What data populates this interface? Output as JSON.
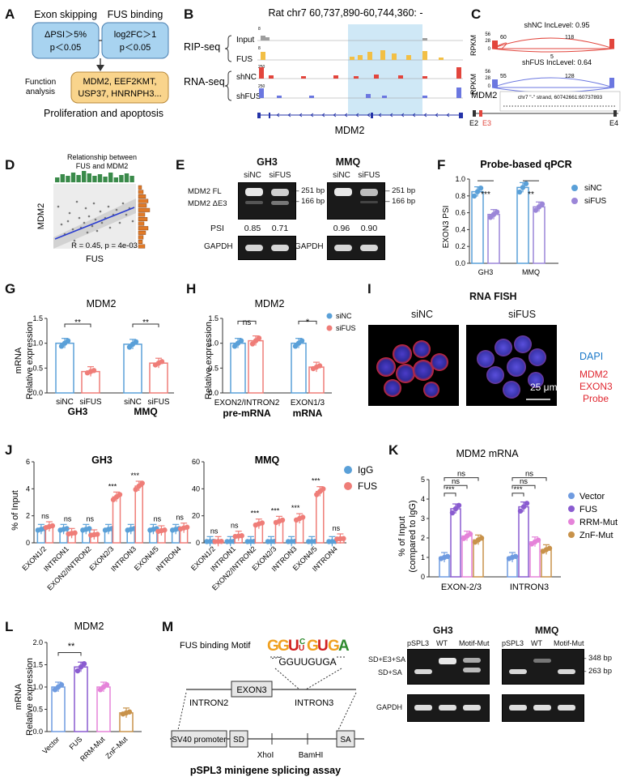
{
  "panel_letters": [
    "A",
    "B",
    "C",
    "D",
    "E",
    "F",
    "G",
    "H",
    "I",
    "J",
    "K",
    "L",
    "M"
  ],
  "A": {
    "box1_title": "Exon skipping",
    "box1_line1": "ΔPSI＞5%",
    "box1_line2": "p＜0.05",
    "box2_title": "FUS binding",
    "box2_line1": "log2FC＞1",
    "box2_line2": "p＜0.05",
    "side_label_1": "Function",
    "side_label_2": "analysis",
    "genes_line1": "MDM2, EEF2KMT,",
    "genes_line2": "USP37, HNRNPH3...",
    "caption": "Proliferation and apoptosis",
    "colors": {
      "blue": "#a8d3f0",
      "orange": "#f9d48c"
    }
  },
  "B": {
    "header": "Rat chr7 60,737,890-60,744,360: -",
    "group_rip": "RIP-seq",
    "group_rna": "RNA-seq",
    "tracks": [
      "Input",
      "FUS",
      "shNC",
      "shFUS"
    ],
    "scales": [
      "8",
      "8",
      "250",
      "250"
    ],
    "gene": "MDM2",
    "colors": {
      "input": "#9e9e9e",
      "fus": "#f2bf45",
      "shNC": "#e2453c",
      "shFUS": "#6b77e0",
      "highlight": "#cfe8f6",
      "gene": "#2433a8"
    }
  },
  "C": {
    "ylabel": "RPKM",
    "top_title": "shNC IncLevel: 0.95",
    "top_ticks": [
      "56",
      "28",
      "0"
    ],
    "top_counts": [
      "60",
      "118",
      "5"
    ],
    "bottom_title": "shFUS IncLevel: 0.64",
    "bottom_ticks": [
      "56",
      "28",
      "0"
    ],
    "bottom_counts": [
      "55",
      "128",
      "48"
    ],
    "gene": "MDM2",
    "coords": "chr7 \"-\" strand, 60742661:60737893",
    "exons": [
      "E2",
      "E3",
      "E4"
    ]
  },
  "D": {
    "title_line1": "Relationship between",
    "title_line2": "FUS and MDM2",
    "xlabel": "FUS",
    "ylabel": "MDM2",
    "stat": "R = 0.45, p = 4e-03"
  },
  "E": {
    "left_title": "GH3",
    "right_title": "MMQ",
    "lanes": [
      "siNC",
      "siFUS"
    ],
    "band_fl": "MDM2 FL",
    "band_de3": "MDM2 ΔE3",
    "size_251": "251 bp",
    "size_166": "166 bp",
    "psi_label": "PSI",
    "psi_gh3": [
      "0.85",
      "0.71"
    ],
    "psi_mmq": [
      "0.96",
      "0.90"
    ],
    "gapdh": "GAPDH"
  },
  "F": {
    "title": "Probe-based qPCR",
    "ylabel": "EXON3 PSI",
    "legend": [
      "siNC",
      "siFUS"
    ],
    "sig": [
      "***",
      "**"
    ]
  },
  "G": {
    "title": "MDM2",
    "ylabel_1": "mRNA",
    "ylabel_2": "Relative expression",
    "sig": [
      "**",
      "**"
    ],
    "groups": [
      "GH3",
      "MMQ"
    ]
  },
  "H": {
    "title": "MDM2",
    "ylabel": "Relative expression",
    "legend": [
      "siNC",
      "siFUS"
    ],
    "sig": [
      "ns",
      "*"
    ],
    "groups_line1": [
      "EXON2/INTRON2",
      "EXON1/3"
    ],
    "groups_line2": [
      "pre-mRNA",
      "mRNA"
    ]
  },
  "I": {
    "title": "RNA FISH",
    "left": "siNC",
    "right": "siFUS",
    "dapi": "DAPI",
    "probe_1": "MDM2",
    "probe_2": "EXON3",
    "probe_3": "Probe",
    "scale": "25 μm"
  },
  "J": {
    "left_title": "GH3",
    "right_title": "MMQ",
    "ylabel": "% of Input",
    "legend": [
      "IgG",
      "FUS"
    ],
    "left_sig": [
      "ns",
      "ns",
      "ns",
      "***",
      "***",
      "ns",
      "ns"
    ],
    "right_sig": [
      "ns",
      "ns",
      "***",
      "***",
      "***",
      "***",
      "ns"
    ]
  },
  "K": {
    "title": "MDM2 mRNA",
    "ylabel_1": "% of Input",
    "ylabel_2": "(compared to IgG)",
    "legend": [
      "Vector",
      "FUS",
      "RRM-Mut",
      "ZnF-Mut"
    ],
    "sig_left": [
      "***",
      "ns",
      "ns"
    ],
    "sig_right": [
      "***",
      "ns",
      "ns"
    ]
  },
  "L": {
    "title": "MDM2",
    "ylabel_1": "mRNA",
    "ylabel_2": "Relative expression",
    "sig": "**"
  },
  "M": {
    "motif_label": "FUS binding Motif",
    "motif_seq": "GGUUGUGA",
    "exon": "EXON3",
    "intron2": "INTRON2",
    "intron3": "INTRON3",
    "sv40": "SV40 promoter",
    "sd": "SD",
    "sa": "SA",
    "xhoi": "XhoI",
    "bamhi": "BamHI",
    "caption": "pSPL3 minigene splicing assay",
    "gel_left": "GH3",
    "gel_right": "MMQ",
    "lanes": [
      "pSPL3",
      "WT",
      "Motif-Mut"
    ],
    "band_top": "SD+E3+SA",
    "band_bot": "SD+SA",
    "size_348": "348 bp",
    "size_263": "263 bp",
    "gapdh": "GAPDH"
  },
  "chart_data": [
    {
      "panel": "F",
      "type": "bar",
      "title": "Probe-based qPCR",
      "ylabel": "EXON3 PSI",
      "ylim": [
        0,
        1.0
      ],
      "categories": [
        "GH3",
        "MMQ"
      ],
      "series": [
        {
          "name": "siNC",
          "values": [
            0.85,
            0.9
          ]
        },
        {
          "name": "siFUS",
          "values": [
            0.58,
            0.67
          ]
        }
      ]
    },
    {
      "panel": "G",
      "type": "bar",
      "title": "MDM2",
      "ylabel": "Relative expression",
      "ylim": [
        0,
        1.5
      ],
      "categories": [
        "GH3 siNC",
        "GH3 siFUS",
        "MMQ siNC",
        "MMQ siFUS"
      ],
      "values": [
        1.0,
        0.43,
        0.98,
        0.6
      ]
    },
    {
      "panel": "H",
      "type": "bar",
      "title": "MDM2",
      "ylabel": "Relative expression",
      "ylim": [
        0,
        1.5
      ],
      "categories": [
        "EXON2/INTRON2",
        "EXON1/3"
      ],
      "series": [
        {
          "name": "siNC",
          "values": [
            1.0,
            1.0
          ]
        },
        {
          "name": "siFUS",
          "values": [
            1.05,
            0.52
          ]
        }
      ]
    },
    {
      "panel": "J-GH3",
      "type": "bar",
      "title": "GH3",
      "ylabel": "% of Input",
      "ylim": [
        0,
        6
      ],
      "categories": [
        "EXON1/2",
        "INTRON1",
        "EXON2/INTRON2",
        "EXON2/3",
        "INTRON3",
        "EXON4/5",
        "INTRON4"
      ],
      "series": [
        {
          "name": "IgG",
          "values": [
            1.0,
            1.0,
            1.0,
            1.0,
            1.0,
            1.0,
            1.0
          ]
        },
        {
          "name": "FUS",
          "values": [
            1.2,
            0.7,
            0.6,
            3.4,
            4.2,
            0.9,
            1.1
          ]
        }
      ]
    },
    {
      "panel": "J-MMQ",
      "type": "bar",
      "title": "MMQ",
      "ylabel": "% of Input",
      "ylim": [
        0,
        60
      ],
      "categories": [
        "EXON1/2",
        "INTRON1",
        "EXON2/INTRON2",
        "EXON2/3",
        "INTRON3",
        "EXON4/5",
        "INTRON4"
      ],
      "series": [
        {
          "name": "IgG",
          "values": [
            1,
            1,
            1,
            1,
            1,
            1,
            1
          ]
        },
        {
          "name": "FUS",
          "values": [
            1,
            5,
            14,
            16,
            18,
            38,
            3
          ]
        }
      ]
    },
    {
      "panel": "K",
      "type": "bar",
      "title": "MDM2 mRNA",
      "ylabel": "% of Input (compared to IgG)",
      "ylim": [
        0,
        5
      ],
      "categories": [
        "EXON-2/3",
        "INTRON3"
      ],
      "series": [
        {
          "name": "Vector",
          "values": [
            1.0,
            1.0
          ]
        },
        {
          "name": "FUS",
          "values": [
            3.5,
            3.6
          ]
        },
        {
          "name": "RRM-Mut",
          "values": [
            2.1,
            1.8
          ]
        },
        {
          "name": "ZnF-Mut",
          "values": [
            1.9,
            1.4
          ]
        }
      ]
    },
    {
      "panel": "L",
      "type": "bar",
      "title": "MDM2",
      "ylabel": "Relative expression",
      "ylim": [
        0,
        2.0
      ],
      "categories": [
        "Vector",
        "FUS",
        "RRM-Mut",
        "ZnF-Mut"
      ],
      "values": [
        1.0,
        1.45,
        1.0,
        0.42
      ]
    }
  ]
}
